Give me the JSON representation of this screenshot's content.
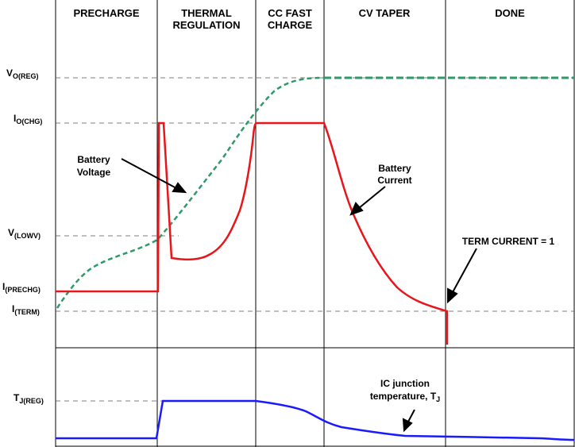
{
  "phases": [
    {
      "line1": "PRECHARGE",
      "line2": ""
    },
    {
      "line1": "THERMAL",
      "line2": "REGULATION"
    },
    {
      "line1": "CC FAST",
      "line2": "CHARGE"
    },
    {
      "line1": "CV TAPER",
      "line2": ""
    },
    {
      "line1": "DONE",
      "line2": ""
    }
  ],
  "levels": {
    "vo_reg": {
      "main": "V",
      "sub": "O(REG)"
    },
    "io_chg": {
      "main": "I",
      "sub": "O(CHG)"
    },
    "v_lowv": {
      "main": "V",
      "sub": "(LOWV)"
    },
    "i_prechg": {
      "main": "I",
      "sub": "(PRECHG)"
    },
    "i_term": {
      "main": "I",
      "sub": "(TERM)"
    },
    "tj_reg": {
      "main": "T",
      "sub": "J(REG)"
    }
  },
  "annotations": {
    "battery_voltage": {
      "line1": "Battery",
      "line2": "Voltage"
    },
    "battery_current": {
      "line1": "Battery",
      "line2": "Current"
    },
    "term_current": "TERM CURRENT = 1",
    "junction_temp": {
      "line1": "IC junction",
      "line2": "temperature, T",
      "sub": "J"
    }
  },
  "colors": {
    "battery_voltage": "#2e9a6a",
    "battery_current": "#e8161b",
    "junction_temperature": "#1a1aff"
  }
}
